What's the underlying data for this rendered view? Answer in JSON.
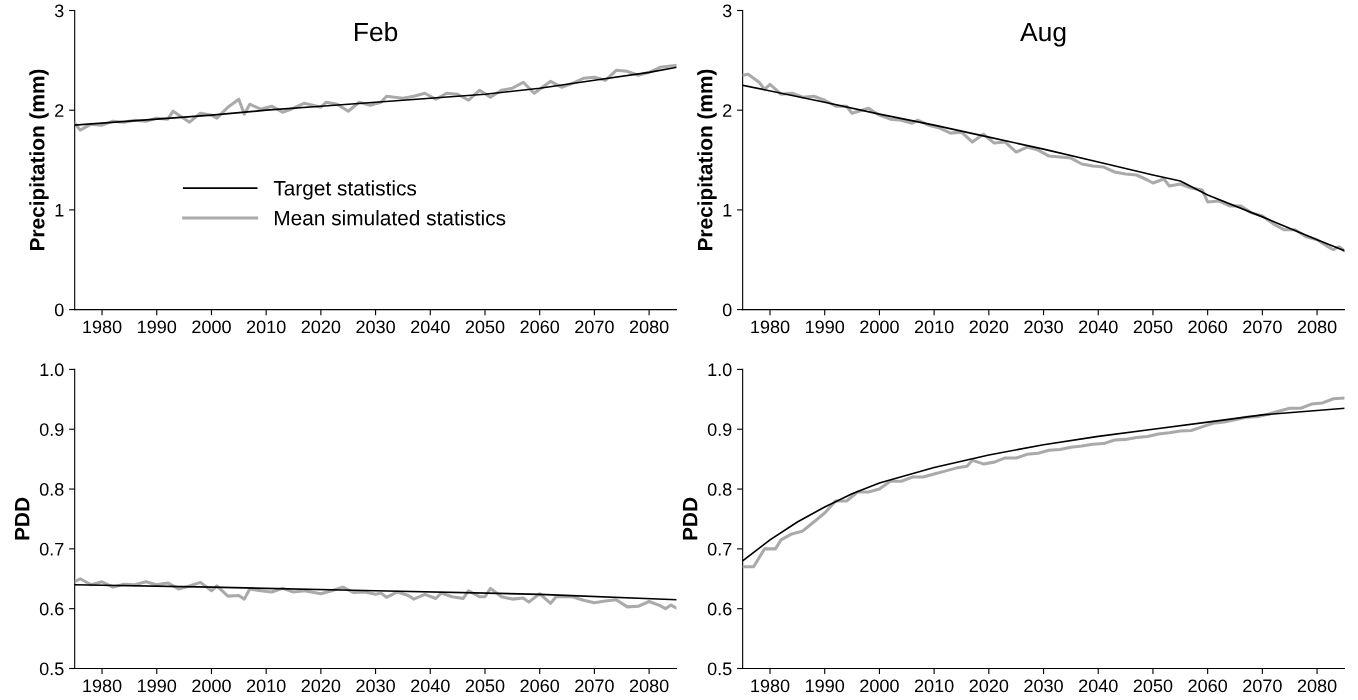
{
  "chart_data": [
    {
      "type": "line",
      "title": "Feb",
      "ylabel": "Precipitation (mm)",
      "xlim": [
        1975,
        2085
      ],
      "xticks": [
        1980,
        1990,
        2000,
        2010,
        2020,
        2030,
        2040,
        2050,
        2060,
        2070,
        2080
      ],
      "ylim": [
        0,
        3
      ],
      "yticks": [
        0,
        1,
        2,
        3
      ],
      "grid": false,
      "legend": "center left",
      "series": [
        {
          "name": "Target statistics",
          "color": "#000000",
          "x": [
            1975,
            1990,
            2000,
            2010,
            2020,
            2030,
            2040,
            2050,
            2060,
            2070,
            2080,
            2085
          ],
          "values": [
            1.85,
            1.91,
            1.95,
            2.0,
            2.04,
            2.08,
            2.12,
            2.16,
            2.22,
            2.3,
            2.38,
            2.43
          ]
        },
        {
          "name": "Mean simulated statistics",
          "color": "#aaaaaa",
          "x": [
            1975,
            1976,
            1978,
            1980,
            1982,
            1984,
            1986,
            1988,
            1990,
            1992,
            1993,
            1996,
            1998,
            2000,
            2001,
            2003,
            2005,
            2006,
            2007,
            2009,
            2011,
            2013,
            2015,
            2017,
            2020,
            2021,
            2023,
            2025,
            2027,
            2029,
            2031,
            2032,
            2035,
            2037,
            2039,
            2041,
            2043,
            2045,
            2047,
            2049,
            2051,
            2053,
            2055,
            2057,
            2059,
            2062,
            2064,
            2066,
            2068,
            2070,
            2072,
            2074,
            2076,
            2078,
            2080,
            2082,
            2085
          ],
          "values": [
            1.87,
            1.8,
            1.86,
            1.85,
            1.89,
            1.88,
            1.9,
            1.89,
            1.92,
            1.91,
            1.99,
            1.88,
            1.97,
            1.95,
            1.92,
            2.03,
            2.11,
            1.96,
            2.06,
            2.01,
            2.04,
            1.98,
            2.02,
            2.07,
            2.03,
            2.08,
            2.06,
            1.99,
            2.08,
            2.05,
            2.08,
            2.14,
            2.12,
            2.14,
            2.17,
            2.11,
            2.17,
            2.16,
            2.1,
            2.2,
            2.13,
            2.2,
            2.22,
            2.28,
            2.17,
            2.29,
            2.23,
            2.27,
            2.32,
            2.33,
            2.3,
            2.4,
            2.39,
            2.35,
            2.38,
            2.43,
            2.45
          ]
        }
      ]
    },
    {
      "type": "line",
      "title": "Aug",
      "ylabel": "Precipitation (mm)",
      "xlim": [
        1975,
        2085
      ],
      "xticks": [
        1980,
        1990,
        2000,
        2010,
        2020,
        2030,
        2040,
        2050,
        2060,
        2070,
        2080
      ],
      "ylim": [
        0,
        3
      ],
      "yticks": [
        0,
        1,
        2,
        3
      ],
      "grid": false,
      "series": [
        {
          "color": "#000000",
          "x": [
            1975,
            1990,
            2000,
            2010,
            2020,
            2030,
            2040,
            2050,
            2055,
            2060,
            2070,
            2080,
            2085
          ],
          "values": [
            2.25,
            2.08,
            1.96,
            1.85,
            1.73,
            1.61,
            1.48,
            1.35,
            1.29,
            1.15,
            0.93,
            0.7,
            0.59
          ]
        },
        {
          "color": "#aaaaaa",
          "x": [
            1975,
            1976,
            1978,
            1979,
            1980,
            1982,
            1984,
            1986,
            1988,
            1990,
            1992,
            1994,
            1995,
            1998,
            2000,
            2002,
            2004,
            2006,
            2007,
            2009,
            2011,
            2013,
            2015,
            2017,
            2019,
            2021,
            2023,
            2025,
            2027,
            2029,
            2031,
            2033,
            2035,
            2037,
            2039,
            2041,
            2043,
            2045,
            2047,
            2049,
            2050,
            2052,
            2053,
            2055,
            2057,
            2059,
            2060,
            2062,
            2064,
            2066,
            2068,
            2070,
            2072,
            2074,
            2076,
            2078,
            2080,
            2082,
            2083,
            2084,
            2085
          ],
          "values": [
            2.35,
            2.36,
            2.28,
            2.21,
            2.26,
            2.16,
            2.17,
            2.13,
            2.14,
            2.1,
            2.04,
            2.04,
            1.97,
            2.02,
            1.95,
            1.91,
            1.9,
            1.87,
            1.9,
            1.85,
            1.82,
            1.77,
            1.78,
            1.68,
            1.76,
            1.67,
            1.68,
            1.58,
            1.63,
            1.6,
            1.54,
            1.53,
            1.52,
            1.46,
            1.44,
            1.43,
            1.38,
            1.36,
            1.35,
            1.3,
            1.27,
            1.31,
            1.24,
            1.26,
            1.22,
            1.2,
            1.08,
            1.09,
            1.04,
            1.04,
            0.97,
            0.94,
            0.86,
            0.8,
            0.8,
            0.73,
            0.7,
            0.63,
            0.6,
            0.63,
            0.59
          ]
        }
      ]
    },
    {
      "type": "line",
      "ylabel": "PDD",
      "xlim": [
        1975,
        2085
      ],
      "xticks": [
        1980,
        1990,
        2000,
        2010,
        2020,
        2030,
        2040,
        2050,
        2060,
        2070,
        2080
      ],
      "ylim": [
        0.5,
        1.0
      ],
      "yticks": [
        {
          "value": 0.5,
          "label": "0.5"
        },
        {
          "value": 0.6,
          "label": "0.6"
        },
        {
          "value": 0.7,
          "label": "0.7"
        },
        {
          "value": 0.8,
          "label": "0.8"
        },
        {
          "value": 0.9,
          "label": "0.9"
        },
        {
          "value": 1.0,
          "label": "1.0"
        }
      ],
      "grid": false,
      "series": [
        {
          "color": "#000000",
          "x": [
            1975,
            2000,
            2030,
            2060,
            2085
          ],
          "values": [
            0.64,
            0.636,
            0.63,
            0.624,
            0.615
          ]
        },
        {
          "color": "#aaaaaa",
          "x": [
            1975,
            1976,
            1978,
            1980,
            1982,
            1984,
            1986,
            1988,
            1990,
            1992,
            1994,
            1996,
            1998,
            2000,
            2001,
            2003,
            2005,
            2006,
            2007,
            2009,
            2011,
            2013,
            2015,
            2017,
            2020,
            2022,
            2024,
            2026,
            2028,
            2030,
            2031,
            2032,
            2034,
            2036,
            2037,
            2039,
            2041,
            2042,
            2044,
            2046,
            2047,
            2049,
            2050,
            2051,
            2053,
            2055,
            2057,
            2058,
            2060,
            2062,
            2063,
            2066,
            2068,
            2070,
            2072,
            2074,
            2076,
            2078,
            2080,
            2082,
            2083,
            2084,
            2085
          ],
          "values": [
            0.645,
            0.65,
            0.64,
            0.645,
            0.636,
            0.641,
            0.64,
            0.645,
            0.64,
            0.643,
            0.633,
            0.638,
            0.644,
            0.63,
            0.638,
            0.621,
            0.622,
            0.616,
            0.633,
            0.63,
            0.628,
            0.634,
            0.628,
            0.63,
            0.625,
            0.63,
            0.636,
            0.627,
            0.628,
            0.624,
            0.626,
            0.619,
            0.628,
            0.622,
            0.616,
            0.624,
            0.617,
            0.626,
            0.62,
            0.617,
            0.63,
            0.62,
            0.62,
            0.634,
            0.62,
            0.616,
            0.618,
            0.611,
            0.625,
            0.609,
            0.62,
            0.62,
            0.614,
            0.61,
            0.613,
            0.615,
            0.603,
            0.604,
            0.612,
            0.605,
            0.6,
            0.606,
            0.601
          ]
        }
      ]
    },
    {
      "type": "line",
      "ylabel": "PDD",
      "xlim": [
        1975,
        2085
      ],
      "xticks": [
        1980,
        1990,
        2000,
        2010,
        2020,
        2030,
        2040,
        2050,
        2060,
        2070,
        2080
      ],
      "ylim": [
        0.5,
        1.0
      ],
      "yticks": [
        {
          "value": 0.5,
          "label": "0.5"
        },
        {
          "value": 0.6,
          "label": "0.6"
        },
        {
          "value": 0.7,
          "label": "0.7"
        },
        {
          "value": 0.8,
          "label": "0.8"
        },
        {
          "value": 0.9,
          "label": "0.9"
        },
        {
          "value": 1.0,
          "label": "1.0"
        }
      ],
      "grid": false,
      "series": [
        {
          "color": "#000000",
          "x": [
            1975,
            1980,
            1985,
            1990,
            1995,
            2000,
            2010,
            2020,
            2030,
            2040,
            2050,
            2060,
            2070,
            2085
          ],
          "values": [
            0.68,
            0.715,
            0.745,
            0.77,
            0.792,
            0.81,
            0.836,
            0.857,
            0.874,
            0.888,
            0.9,
            0.912,
            0.924,
            0.935
          ]
        },
        {
          "color": "#aaaaaa",
          "x": [
            1975,
            1977,
            1979,
            1981,
            1982,
            1984,
            1986,
            1988,
            1990,
            1992,
            1994,
            1996,
            1998,
            2000,
            2002,
            2004,
            2006,
            2008,
            2010,
            2012,
            2014,
            2016,
            2017,
            2019,
            2021,
            2023,
            2025,
            2027,
            2029,
            2031,
            2033,
            2035,
            2037,
            2039,
            2041,
            2043,
            2045,
            2047,
            2049,
            2051,
            2053,
            2055,
            2057,
            2059,
            2061,
            2063,
            2065,
            2067,
            2069,
            2071,
            2073,
            2075,
            2077,
            2079,
            2081,
            2083,
            2085
          ],
          "values": [
            0.67,
            0.67,
            0.7,
            0.7,
            0.715,
            0.725,
            0.73,
            0.745,
            0.76,
            0.78,
            0.78,
            0.795,
            0.795,
            0.8,
            0.813,
            0.813,
            0.82,
            0.82,
            0.825,
            0.83,
            0.835,
            0.838,
            0.848,
            0.842,
            0.845,
            0.852,
            0.852,
            0.858,
            0.86,
            0.865,
            0.866,
            0.87,
            0.872,
            0.875,
            0.876,
            0.882,
            0.883,
            0.886,
            0.888,
            0.892,
            0.894,
            0.897,
            0.898,
            0.904,
            0.91,
            0.912,
            0.916,
            0.92,
            0.921,
            0.925,
            0.93,
            0.935,
            0.935,
            0.942,
            0.944,
            0.951,
            0.952
          ]
        }
      ]
    }
  ]
}
